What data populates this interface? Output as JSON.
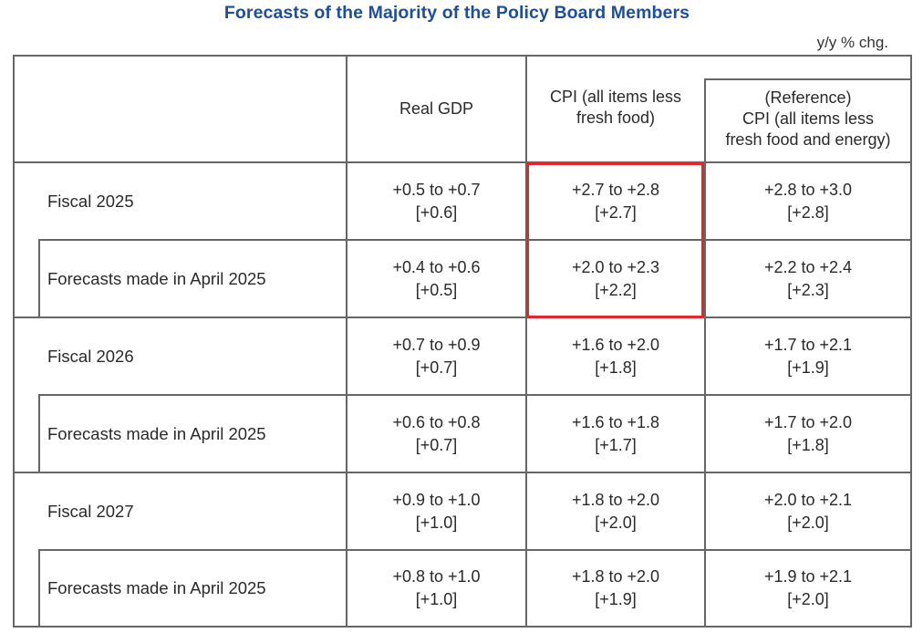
{
  "title": "Forecasts of the Majority of the Policy Board Members",
  "unit": "y/y % chg.",
  "columns": {
    "real_gdp": "Real GDP",
    "cpi_line1": "CPI (all items less",
    "cpi_line2": "fresh food)",
    "ref_line1": "(Reference)",
    "ref_line2": "CPI (all items less",
    "ref_line3": "fresh food and energy)"
  },
  "rows": [
    {
      "label": "Fiscal 2025",
      "gdp": {
        "range": "+0.5 to +0.7",
        "median": "[+0.6]"
      },
      "cpi": {
        "range": "+2.7 to +2.8",
        "median": "[+2.7]"
      },
      "ref": {
        "range": "+2.8 to +3.0",
        "median": "[+2.8]"
      }
    },
    {
      "label": "Forecasts made in April 2025",
      "gdp": {
        "range": "+0.4 to +0.6",
        "median": "[+0.5]"
      },
      "cpi": {
        "range": "+2.0 to +2.3",
        "median": "[+2.2]"
      },
      "ref": {
        "range": "+2.2 to +2.4",
        "median": "[+2.3]"
      }
    },
    {
      "label": "Fiscal 2026",
      "gdp": {
        "range": "+0.7 to +0.9",
        "median": "[+0.7]"
      },
      "cpi": {
        "range": "+1.6 to +2.0",
        "median": "[+1.8]"
      },
      "ref": {
        "range": "+1.7 to +2.1",
        "median": "[+1.9]"
      }
    },
    {
      "label": "Forecasts made in April 2025",
      "gdp": {
        "range": "+0.6 to +0.8",
        "median": "[+0.7]"
      },
      "cpi": {
        "range": "+1.6 to +1.8",
        "median": "[+1.7]"
      },
      "ref": {
        "range": "+1.7 to +2.0",
        "median": "[+1.8]"
      }
    },
    {
      "label": "Fiscal 2027",
      "gdp": {
        "range": "+0.9 to +1.0",
        "median": "[+1.0]"
      },
      "cpi": {
        "range": "+1.8 to +2.0",
        "median": "[+2.0]"
      },
      "ref": {
        "range": "+2.0 to +2.1",
        "median": "[+2.0]"
      }
    },
    {
      "label": "Forecasts made in April 2025",
      "gdp": {
        "range": "+0.8 to +1.0",
        "median": "[+1.0]"
      },
      "cpi": {
        "range": "+1.8 to +2.0",
        "median": "[+1.9]"
      },
      "ref": {
        "range": "+1.9 to +2.1",
        "median": "[+2.0]"
      }
    }
  ],
  "colors": {
    "title": "#1f4e9a",
    "highlight_border": "#e0282a",
    "grid_line": "#666666"
  }
}
